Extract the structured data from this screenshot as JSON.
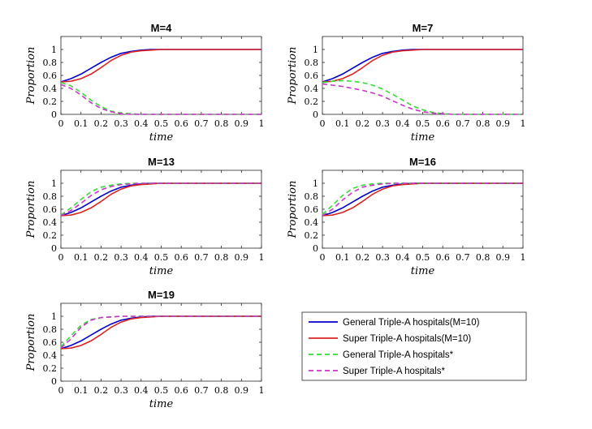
{
  "chart_data": [
    {
      "type": "line",
      "title": "M=4",
      "xlabel": "time",
      "ylabel": "Proportion",
      "xlim": [
        0,
        1
      ],
      "ylim": [
        0,
        1.2
      ],
      "xticks": [
        "0",
        "0.1",
        "0.2",
        "0.3",
        "0.4",
        "0.5",
        "0.6",
        "0.7",
        "0.8",
        "0.9",
        "1"
      ],
      "yticks": [
        "0",
        "0.2",
        "0.4",
        "0.6",
        "0.8",
        "1"
      ],
      "grid": false,
      "series": [
        {
          "ref": "general_m10",
          "x": [
            0,
            0.05,
            0.1,
            0.15,
            0.2,
            0.25,
            0.3,
            0.35,
            0.4,
            0.45,
            0.5,
            0.6,
            0.7,
            0.8,
            0.9,
            1
          ],
          "y": [
            0.5,
            0.55,
            0.62,
            0.71,
            0.8,
            0.88,
            0.94,
            0.97,
            0.99,
            1,
            1,
            1,
            1,
            1,
            1,
            1
          ]
        },
        {
          "ref": "super_m10",
          "x": [
            0,
            0.05,
            0.1,
            0.15,
            0.2,
            0.25,
            0.3,
            0.35,
            0.4,
            0.45,
            0.5,
            0.6,
            0.7,
            0.8,
            0.9,
            1
          ],
          "y": [
            0.5,
            0.51,
            0.55,
            0.62,
            0.72,
            0.83,
            0.91,
            0.96,
            0.98,
            0.99,
            1,
            1,
            1,
            1,
            1,
            1
          ]
        },
        {
          "ref": "general_star",
          "x": [
            0,
            0.05,
            0.1,
            0.15,
            0.2,
            0.25,
            0.3,
            0.35,
            0.4,
            0.45,
            0.5,
            0.6,
            0.7,
            0.8,
            0.9,
            1
          ],
          "y": [
            0.49,
            0.44,
            0.34,
            0.22,
            0.12,
            0.05,
            0.02,
            0.01,
            0,
            0,
            0,
            0,
            0,
            0,
            0,
            0
          ]
        },
        {
          "ref": "super_star",
          "x": [
            0,
            0.05,
            0.1,
            0.15,
            0.2,
            0.25,
            0.3,
            0.35,
            0.4,
            0.45,
            0.5,
            0.6,
            0.7,
            0.8,
            0.9,
            1
          ],
          "y": [
            0.46,
            0.4,
            0.3,
            0.18,
            0.09,
            0.04,
            0.01,
            0,
            0,
            0,
            0,
            0,
            0,
            0,
            0,
            0
          ]
        }
      ]
    },
    {
      "type": "line",
      "title": "M=7",
      "xlabel": "time",
      "ylabel": "Proportion",
      "xlim": [
        0,
        1
      ],
      "ylim": [
        0,
        1.2
      ],
      "xticks": [
        "0",
        "0.1",
        "0.2",
        "0.3",
        "0.4",
        "0.5",
        "0.6",
        "0.7",
        "0.8",
        "0.9",
        "1"
      ],
      "yticks": [
        "0",
        "0.2",
        "0.4",
        "0.6",
        "0.8",
        "1"
      ],
      "grid": false,
      "series": [
        {
          "ref": "general_m10",
          "x": [
            0,
            0.05,
            0.1,
            0.15,
            0.2,
            0.25,
            0.3,
            0.35,
            0.4,
            0.45,
            0.5,
            0.6,
            0.7,
            0.8,
            0.9,
            1
          ],
          "y": [
            0.5,
            0.55,
            0.62,
            0.71,
            0.8,
            0.88,
            0.94,
            0.97,
            0.99,
            1,
            1,
            1,
            1,
            1,
            1,
            1
          ]
        },
        {
          "ref": "super_m10",
          "x": [
            0,
            0.05,
            0.1,
            0.15,
            0.2,
            0.25,
            0.3,
            0.35,
            0.4,
            0.45,
            0.5,
            0.6,
            0.7,
            0.8,
            0.9,
            1
          ],
          "y": [
            0.5,
            0.51,
            0.55,
            0.62,
            0.72,
            0.83,
            0.91,
            0.96,
            0.98,
            0.99,
            1,
            1,
            1,
            1,
            1,
            1
          ]
        },
        {
          "ref": "general_star",
          "x": [
            0,
            0.05,
            0.1,
            0.15,
            0.2,
            0.25,
            0.3,
            0.35,
            0.4,
            0.45,
            0.5,
            0.55,
            0.6,
            0.65,
            0.7,
            0.8,
            0.9,
            1
          ],
          "y": [
            0.49,
            0.51,
            0.52,
            0.51,
            0.49,
            0.45,
            0.39,
            0.31,
            0.22,
            0.13,
            0.07,
            0.03,
            0.01,
            0,
            0,
            0,
            0,
            0
          ]
        },
        {
          "ref": "super_star",
          "x": [
            0,
            0.05,
            0.1,
            0.15,
            0.2,
            0.25,
            0.3,
            0.35,
            0.4,
            0.45,
            0.5,
            0.55,
            0.6,
            0.65,
            0.7,
            0.8,
            0.9,
            1
          ],
          "y": [
            0.47,
            0.45,
            0.43,
            0.4,
            0.37,
            0.33,
            0.28,
            0.21,
            0.14,
            0.08,
            0.04,
            0.02,
            0.01,
            0,
            0,
            0,
            0,
            0
          ]
        }
      ]
    },
    {
      "type": "line",
      "title": "M=13",
      "xlabel": "time",
      "ylabel": "Proportion",
      "xlim": [
        0,
        1
      ],
      "ylim": [
        0,
        1.2
      ],
      "xticks": [
        "0",
        "0.1",
        "0.2",
        "0.3",
        "0.4",
        "0.5",
        "0.6",
        "0.7",
        "0.8",
        "0.9",
        "1"
      ],
      "yticks": [
        "0",
        "0.2",
        "0.4",
        "0.6",
        "0.8",
        "1"
      ],
      "grid": false,
      "series": [
        {
          "ref": "general_m10",
          "x": [
            0,
            0.05,
            0.1,
            0.15,
            0.2,
            0.25,
            0.3,
            0.35,
            0.4,
            0.45,
            0.5,
            0.6,
            0.7,
            0.8,
            0.9,
            1
          ],
          "y": [
            0.5,
            0.55,
            0.62,
            0.71,
            0.8,
            0.88,
            0.94,
            0.97,
            0.99,
            1,
            1,
            1,
            1,
            1,
            1,
            1
          ]
        },
        {
          "ref": "super_m10",
          "x": [
            0,
            0.05,
            0.1,
            0.15,
            0.2,
            0.25,
            0.3,
            0.35,
            0.4,
            0.45,
            0.5,
            0.6,
            0.7,
            0.8,
            0.9,
            1
          ],
          "y": [
            0.5,
            0.51,
            0.55,
            0.62,
            0.72,
            0.83,
            0.91,
            0.96,
            0.98,
            0.99,
            1,
            1,
            1,
            1,
            1,
            1
          ]
        },
        {
          "ref": "general_star",
          "x": [
            0,
            0.05,
            0.1,
            0.15,
            0.2,
            0.25,
            0.3,
            0.35,
            0.4,
            0.5,
            0.6,
            0.7,
            0.8,
            0.9,
            1
          ],
          "y": [
            0.51,
            0.62,
            0.75,
            0.87,
            0.94,
            0.97,
            0.99,
            1,
            1,
            1,
            1,
            1,
            1,
            1,
            1
          ]
        },
        {
          "ref": "super_star",
          "x": [
            0,
            0.05,
            0.1,
            0.15,
            0.2,
            0.25,
            0.3,
            0.35,
            0.4,
            0.5,
            0.6,
            0.7,
            0.8,
            0.9,
            1
          ],
          "y": [
            0.5,
            0.58,
            0.69,
            0.81,
            0.9,
            0.95,
            0.98,
            0.99,
            1,
            1,
            1,
            1,
            1,
            1,
            1
          ]
        }
      ]
    },
    {
      "type": "line",
      "title": "M=16",
      "xlabel": "time",
      "ylabel": "Proportion",
      "xlim": [
        0,
        1
      ],
      "ylim": [
        0,
        1.2
      ],
      "xticks": [
        "0",
        "0.1",
        "0.2",
        "0.3",
        "0.4",
        "0.5",
        "0.6",
        "0.7",
        "0.8",
        "0.9",
        "1"
      ],
      "yticks": [
        "0",
        "0.2",
        "0.4",
        "0.6",
        "0.8",
        "1"
      ],
      "grid": false,
      "series": [
        {
          "ref": "general_m10",
          "x": [
            0,
            0.05,
            0.1,
            0.15,
            0.2,
            0.25,
            0.3,
            0.35,
            0.4,
            0.45,
            0.5,
            0.6,
            0.7,
            0.8,
            0.9,
            1
          ],
          "y": [
            0.5,
            0.55,
            0.62,
            0.71,
            0.8,
            0.88,
            0.94,
            0.97,
            0.99,
            1,
            1,
            1,
            1,
            1,
            1,
            1
          ]
        },
        {
          "ref": "super_m10",
          "x": [
            0,
            0.05,
            0.1,
            0.15,
            0.2,
            0.25,
            0.3,
            0.35,
            0.4,
            0.45,
            0.5,
            0.6,
            0.7,
            0.8,
            0.9,
            1
          ],
          "y": [
            0.5,
            0.51,
            0.55,
            0.62,
            0.72,
            0.83,
            0.91,
            0.96,
            0.98,
            0.99,
            1,
            1,
            1,
            1,
            1,
            1
          ]
        },
        {
          "ref": "general_star",
          "x": [
            0,
            0.05,
            0.1,
            0.15,
            0.2,
            0.25,
            0.3,
            0.35,
            0.4,
            0.5,
            0.6,
            0.7,
            0.8,
            0.9,
            1
          ],
          "y": [
            0.52,
            0.66,
            0.81,
            0.92,
            0.97,
            0.99,
            1,
            1,
            1,
            1,
            1,
            1,
            1,
            1,
            1
          ]
        },
        {
          "ref": "super_star",
          "x": [
            0,
            0.05,
            0.1,
            0.15,
            0.2,
            0.25,
            0.3,
            0.35,
            0.4,
            0.5,
            0.6,
            0.7,
            0.8,
            0.9,
            1
          ],
          "y": [
            0.5,
            0.6,
            0.74,
            0.86,
            0.94,
            0.97,
            0.99,
            1,
            1,
            1,
            1,
            1,
            1,
            1,
            1
          ]
        }
      ]
    },
    {
      "type": "line",
      "title": "M=19",
      "xlabel": "time",
      "ylabel": "Proportion",
      "xlim": [
        0,
        1
      ],
      "ylim": [
        0,
        1.2
      ],
      "xticks": [
        "0",
        "0.1",
        "0.2",
        "0.3",
        "0.4",
        "0.5",
        "0.6",
        "0.7",
        "0.8",
        "0.9",
        "1"
      ],
      "yticks": [
        "0",
        "0.2",
        "0.4",
        "0.6",
        "0.8",
        "1"
      ],
      "grid": false,
      "series": [
        {
          "ref": "general_m10",
          "x": [
            0,
            0.05,
            0.1,
            0.15,
            0.2,
            0.25,
            0.3,
            0.35,
            0.4,
            0.45,
            0.5,
            0.6,
            0.7,
            0.8,
            0.9,
            1
          ],
          "y": [
            0.5,
            0.55,
            0.62,
            0.71,
            0.8,
            0.88,
            0.94,
            0.97,
            0.99,
            1,
            1,
            1,
            1,
            1,
            1,
            1
          ]
        },
        {
          "ref": "super_m10",
          "x": [
            0,
            0.05,
            0.1,
            0.15,
            0.2,
            0.25,
            0.3,
            0.35,
            0.4,
            0.45,
            0.5,
            0.6,
            0.7,
            0.8,
            0.9,
            1
          ],
          "y": [
            0.5,
            0.51,
            0.55,
            0.62,
            0.72,
            0.83,
            0.91,
            0.96,
            0.98,
            0.99,
            1,
            1,
            1,
            1,
            1,
            1
          ]
        },
        {
          "ref": "general_star",
          "x": [
            0,
            0.05,
            0.1,
            0.15,
            0.2,
            0.25,
            0.3,
            0.4,
            0.5,
            0.6,
            0.7,
            0.8,
            0.9,
            1
          ],
          "y": [
            0.53,
            0.7,
            0.86,
            0.95,
            0.98,
            0.99,
            1,
            1,
            1,
            1,
            1,
            1,
            1,
            1
          ]
        },
        {
          "ref": "super_star",
          "x": [
            0,
            0.05,
            0.1,
            0.15,
            0.2,
            0.25,
            0.3,
            0.4,
            0.5,
            0.6,
            0.7,
            0.8,
            0.9,
            1
          ],
          "y": [
            0.51,
            0.65,
            0.83,
            0.94,
            0.98,
            0.99,
            1,
            1,
            1,
            1,
            1,
            1,
            1,
            1
          ]
        }
      ]
    }
  ],
  "legend": {
    "placement": "bottom-right",
    "entries": [
      {
        "ref": "general_m10",
        "label": "General Triple-A hospitals(M=10)",
        "color": "#0000cc",
        "style": "solid"
      },
      {
        "ref": "super_m10",
        "label": "Super Triple-A hospitals(M=10)",
        "color": "#dd2222",
        "style": "solid"
      },
      {
        "ref": "general_star",
        "label": "General Triple-A hospitals*",
        "color": "#33dd33",
        "style": "dashed"
      },
      {
        "ref": "super_star",
        "label": "Super Triple-A hospitals*",
        "color": "#cc33cc",
        "style": "dashed"
      }
    ]
  }
}
